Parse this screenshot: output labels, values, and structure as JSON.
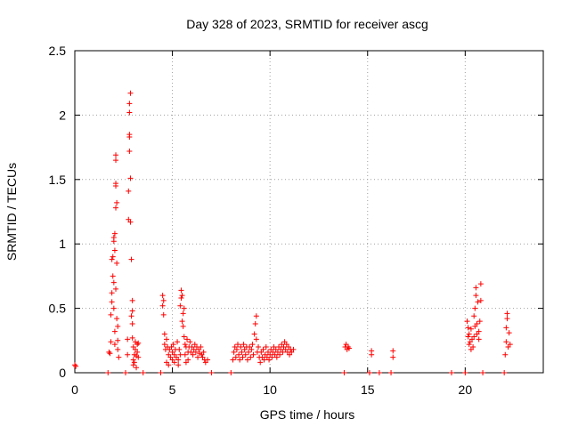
{
  "chart_data": {
    "type": "scatter",
    "title": "Day 328 of 2023, SRMTID for receiver ascg",
    "xlabel": "GPS time / hours",
    "ylabel": "SRMTID / TECUs",
    "xlim": [
      0,
      24
    ],
    "ylim": [
      0,
      2.5
    ],
    "xticks": [
      0,
      5,
      10,
      15,
      20
    ],
    "xtick_labels": [
      "0",
      "5",
      "10",
      "15",
      "20"
    ],
    "yticks": [
      0,
      0.5,
      1,
      1.5,
      2,
      2.5
    ],
    "ytick_labels": [
      "0",
      "0.5",
      "1",
      "1.5",
      "2",
      "2.5"
    ],
    "grid": true,
    "marker": "+",
    "series": [
      {
        "name": "SRMTID",
        "color": "#ff0000",
        "points": [
          [
            0.0,
            0.06
          ],
          [
            0.05,
            0.05
          ],
          [
            1.7,
            0.0
          ],
          [
            1.75,
            0.16
          ],
          [
            1.8,
            0.15
          ],
          [
            1.85,
            0.24
          ],
          [
            1.85,
            0.45
          ],
          [
            1.9,
            0.55
          ],
          [
            1.9,
            0.62
          ],
          [
            1.9,
            0.88
          ],
          [
            1.95,
            0.75
          ],
          [
            1.95,
            0.9
          ],
          [
            2.0,
            1.02
          ],
          [
            2.0,
            1.05
          ],
          [
            2.0,
            0.7
          ],
          [
            2.0,
            0.5
          ],
          [
            2.05,
            0.95
          ],
          [
            2.05,
            1.08
          ],
          [
            2.05,
            0.32
          ],
          [
            2.05,
            0.22
          ],
          [
            2.1,
            0.65
          ],
          [
            2.1,
            1.28
          ],
          [
            2.1,
            1.45
          ],
          [
            2.1,
            1.47
          ],
          [
            2.1,
            1.65
          ],
          [
            2.1,
            1.69
          ],
          [
            2.15,
            1.32
          ],
          [
            2.15,
            0.85
          ],
          [
            2.15,
            0.42
          ],
          [
            2.2,
            0.36
          ],
          [
            2.2,
            0.25
          ],
          [
            2.2,
            0.18
          ],
          [
            2.25,
            0.12
          ],
          [
            2.6,
            0.0
          ],
          [
            2.7,
            0.26
          ],
          [
            2.7,
            0.14
          ],
          [
            2.75,
            1.19
          ],
          [
            2.75,
            1.41
          ],
          [
            2.8,
            1.72
          ],
          [
            2.8,
            1.83
          ],
          [
            2.8,
            1.85
          ],
          [
            2.8,
            2.02
          ],
          [
            2.8,
            2.09
          ],
          [
            2.85,
            2.17
          ],
          [
            2.85,
            1.51
          ],
          [
            2.85,
            1.17
          ],
          [
            2.9,
            0.88
          ],
          [
            2.9,
            0.44
          ],
          [
            2.95,
            0.56
          ],
          [
            2.95,
            0.48
          ],
          [
            2.95,
            0.38
          ],
          [
            2.95,
            0.27
          ],
          [
            3.0,
            0.2
          ],
          [
            3.0,
            0.1
          ],
          [
            3.0,
            0.06
          ],
          [
            3.05,
            0.14
          ],
          [
            3.05,
            0.08
          ],
          [
            3.1,
            0.24
          ],
          [
            3.1,
            0.18
          ],
          [
            3.15,
            0.13
          ],
          [
            3.15,
            0.04
          ],
          [
            3.2,
            0.22
          ],
          [
            3.2,
            0.16
          ],
          [
            3.25,
            0.12
          ],
          [
            3.25,
            0.23
          ],
          [
            3.5,
            0.0
          ],
          [
            4.4,
            0.0
          ],
          [
            4.5,
            0.52
          ],
          [
            4.5,
            0.6
          ],
          [
            4.55,
            0.56
          ],
          [
            4.55,
            0.45
          ],
          [
            4.6,
            0.22
          ],
          [
            4.6,
            0.3
          ],
          [
            4.65,
            0.18
          ],
          [
            4.7,
            0.08
          ],
          [
            4.7,
            0.26
          ],
          [
            4.75,
            0.2
          ],
          [
            4.8,
            0.14
          ],
          [
            4.8,
            0.06
          ],
          [
            4.85,
            0.18
          ],
          [
            4.9,
            0.12
          ],
          [
            4.95,
            0.2
          ],
          [
            5.0,
            0.1
          ],
          [
            5.0,
            0.16
          ],
          [
            5.05,
            0.22
          ],
          [
            5.1,
            0.14
          ],
          [
            5.1,
            0.08
          ],
          [
            5.15,
            0.18
          ],
          [
            5.2,
            0.12
          ],
          [
            5.25,
            0.24
          ],
          [
            5.3,
            0.1
          ],
          [
            5.3,
            0.06
          ],
          [
            5.35,
            0.18
          ],
          [
            5.4,
            0.14
          ],
          [
            5.4,
            0.52
          ],
          [
            5.45,
            0.58
          ],
          [
            5.45,
            0.64
          ],
          [
            5.5,
            0.6
          ],
          [
            5.5,
            0.4
          ],
          [
            5.55,
            0.46
          ],
          [
            5.55,
            0.36
          ],
          [
            5.6,
            0.5
          ],
          [
            5.6,
            0.28
          ],
          [
            5.65,
            0.22
          ],
          [
            5.65,
            0.14
          ],
          [
            5.7,
            0.2
          ],
          [
            5.7,
            0.08
          ],
          [
            5.75,
            0.26
          ],
          [
            5.8,
            0.16
          ],
          [
            5.8,
            0.1
          ],
          [
            5.85,
            0.2
          ],
          [
            5.9,
            0.24
          ],
          [
            5.95,
            0.16
          ],
          [
            6.0,
            0.2
          ],
          [
            6.05,
            0.14
          ],
          [
            6.1,
            0.18
          ],
          [
            6.15,
            0.22
          ],
          [
            6.2,
            0.16
          ],
          [
            6.25,
            0.2
          ],
          [
            6.3,
            0.12
          ],
          [
            6.35,
            0.18
          ],
          [
            6.4,
            0.15
          ],
          [
            6.45,
            0.2
          ],
          [
            6.5,
            0.14
          ],
          [
            6.55,
            0.12
          ],
          [
            6.6,
            0.16
          ],
          [
            6.65,
            0.1
          ],
          [
            6.7,
            0.08
          ],
          [
            6.8,
            0.1
          ],
          [
            7.0,
            0.0
          ],
          [
            8.0,
            0.0
          ],
          [
            8.1,
            0.1
          ],
          [
            8.15,
            0.16
          ],
          [
            8.2,
            0.2
          ],
          [
            8.25,
            0.12
          ],
          [
            8.3,
            0.18
          ],
          [
            8.35,
            0.22
          ],
          [
            8.4,
            0.14
          ],
          [
            8.45,
            0.1
          ],
          [
            8.5,
            0.2
          ],
          [
            8.55,
            0.16
          ],
          [
            8.6,
            0.12
          ],
          [
            8.65,
            0.22
          ],
          [
            8.7,
            0.18
          ],
          [
            8.75,
            0.14
          ],
          [
            8.8,
            0.2
          ],
          [
            8.85,
            0.1
          ],
          [
            8.9,
            0.16
          ],
          [
            8.95,
            0.2
          ],
          [
            9.0,
            0.12
          ],
          [
            9.05,
            0.18
          ],
          [
            9.1,
            0.22
          ],
          [
            9.15,
            0.14
          ],
          [
            9.2,
            0.3
          ],
          [
            9.25,
            0.38
          ],
          [
            9.3,
            0.44
          ],
          [
            9.3,
            0.26
          ],
          [
            9.35,
            0.16
          ],
          [
            9.4,
            0.2
          ],
          [
            9.45,
            0.12
          ],
          [
            9.5,
            0.08
          ],
          [
            9.55,
            0.16
          ],
          [
            9.6,
            0.12
          ],
          [
            9.65,
            0.18
          ],
          [
            9.7,
            0.1
          ],
          [
            9.75,
            0.14
          ],
          [
            9.8,
            0.2
          ],
          [
            9.85,
            0.12
          ],
          [
            9.9,
            0.16
          ],
          [
            9.95,
            0.1
          ],
          [
            10.0,
            0.14
          ],
          [
            10.05,
            0.18
          ],
          [
            10.1,
            0.12
          ],
          [
            10.15,
            0.16
          ],
          [
            10.2,
            0.2
          ],
          [
            10.25,
            0.14
          ],
          [
            10.3,
            0.18
          ],
          [
            10.35,
            0.12
          ],
          [
            10.4,
            0.16
          ],
          [
            10.45,
            0.2
          ],
          [
            10.5,
            0.14
          ],
          [
            10.55,
            0.18
          ],
          [
            10.6,
            0.22
          ],
          [
            10.65,
            0.16
          ],
          [
            10.7,
            0.2
          ],
          [
            10.75,
            0.24
          ],
          [
            10.8,
            0.18
          ],
          [
            10.85,
            0.22
          ],
          [
            10.9,
            0.16
          ],
          [
            10.95,
            0.2
          ],
          [
            11.0,
            0.14
          ],
          [
            11.05,
            0.18
          ],
          [
            11.1,
            0.16
          ],
          [
            11.2,
            0.18
          ],
          [
            13.8,
            0.0
          ],
          [
            13.85,
            0.2
          ],
          [
            13.9,
            0.22
          ],
          [
            13.95,
            0.18
          ],
          [
            14.0,
            0.2
          ],
          [
            14.05,
            0.19
          ],
          [
            15.1,
            0.0
          ],
          [
            15.2,
            0.14
          ],
          [
            15.2,
            0.17
          ],
          [
            15.6,
            0.0
          ],
          [
            16.2,
            0.0
          ],
          [
            16.3,
            0.12
          ],
          [
            16.3,
            0.17
          ],
          [
            19.3,
            0.0
          ],
          [
            20.0,
            0.0
          ],
          [
            20.1,
            0.4
          ],
          [
            20.15,
            0.35
          ],
          [
            20.15,
            0.28
          ],
          [
            20.2,
            0.22
          ],
          [
            20.2,
            0.3
          ],
          [
            20.25,
            0.24
          ],
          [
            20.3,
            0.18
          ],
          [
            20.3,
            0.34
          ],
          [
            20.35,
            0.26
          ],
          [
            20.4,
            0.2
          ],
          [
            20.45,
            0.44
          ],
          [
            20.45,
            0.28
          ],
          [
            20.5,
            0.5
          ],
          [
            20.5,
            0.36
          ],
          [
            20.55,
            0.66
          ],
          [
            20.55,
            0.6
          ],
          [
            20.6,
            0.38
          ],
          [
            20.6,
            0.3
          ],
          [
            20.65,
            0.55
          ],
          [
            20.7,
            0.32
          ],
          [
            20.7,
            0.26
          ],
          [
            20.75,
            0.4
          ],
          [
            20.8,
            0.69
          ],
          [
            20.8,
            0.56
          ],
          [
            20.9,
            0.0
          ],
          [
            22.0,
            0.0
          ],
          [
            22.05,
            0.14
          ],
          [
            22.1,
            0.24
          ],
          [
            22.1,
            0.35
          ],
          [
            22.15,
            0.42
          ],
          [
            22.15,
            0.46
          ],
          [
            22.2,
            0.2
          ],
          [
            22.25,
            0.31
          ],
          [
            22.3,
            0.22
          ]
        ]
      }
    ]
  }
}
